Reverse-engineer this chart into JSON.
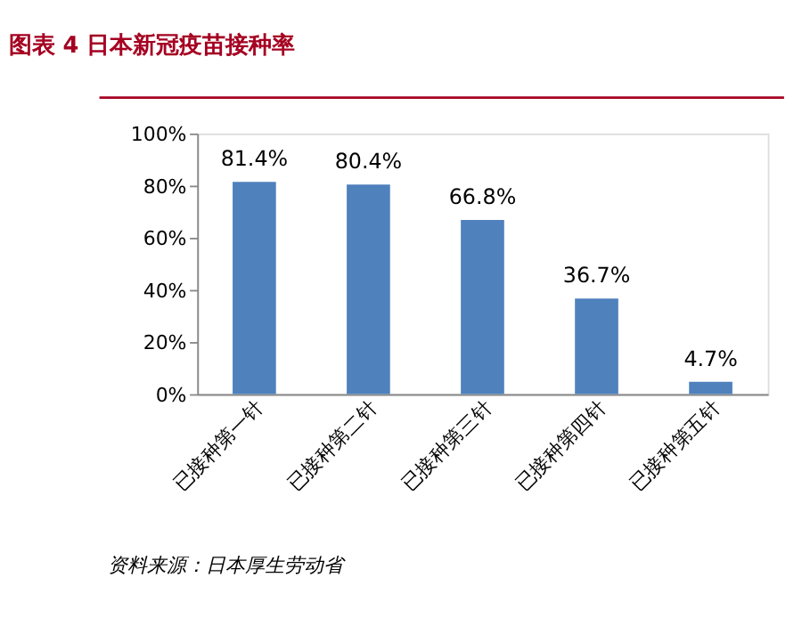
{
  "chart_data": {
    "type": "bar",
    "title": "图表 4   日本新冠疫苗接种率",
    "categories": [
      "已接种第一针",
      "已接种第二针",
      "已接种第三针",
      "已接种第四针",
      "已接种第五针"
    ],
    "values": [
      81.4,
      80.4,
      66.8,
      36.7,
      4.7
    ],
    "value_labels": [
      "81.4%",
      "80.4%",
      "66.8%",
      "36.7%",
      "4.7%"
    ],
    "color": "#4f81bd",
    "ylim": [
      0,
      100
    ],
    "yticks": [
      {
        "value": 0,
        "label": "0%"
      },
      {
        "value": 20,
        "label": "20%"
      },
      {
        "value": 40,
        "label": "40%"
      },
      {
        "value": 60,
        "label": "60%"
      },
      {
        "value": 80,
        "label": "80%"
      },
      {
        "value": 100,
        "label": "100%"
      }
    ],
    "grid": false,
    "annotations": [
      "资料来源：日本厚生劳动省"
    ]
  }
}
